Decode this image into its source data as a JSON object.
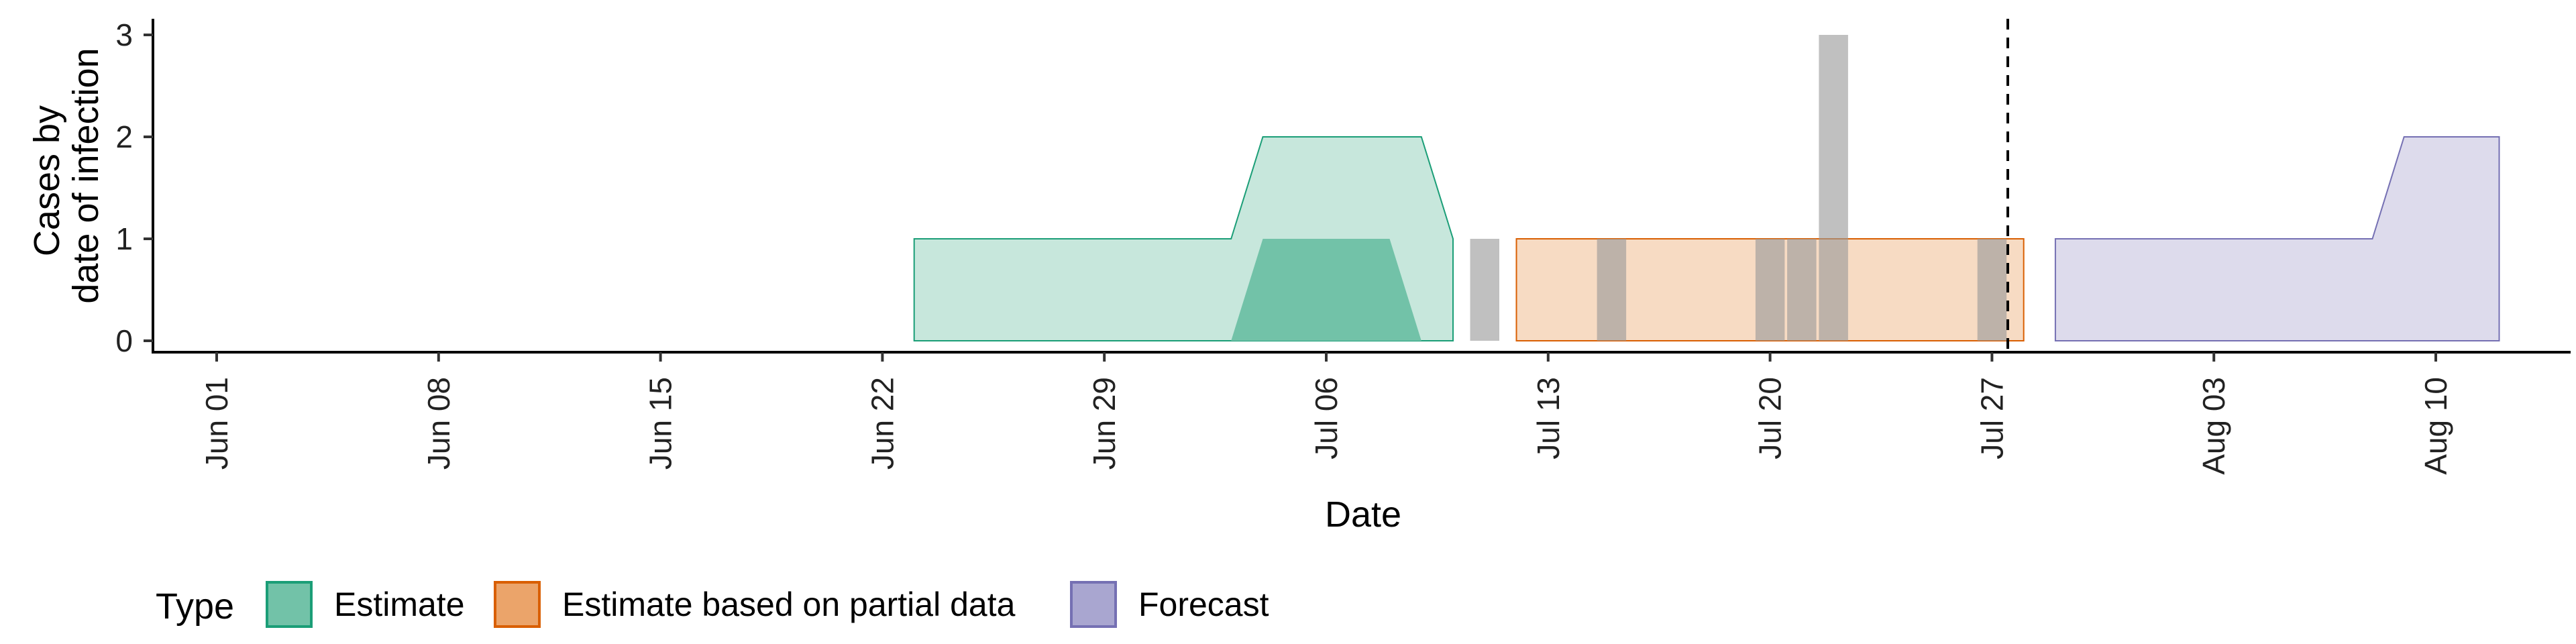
{
  "chart_data": {
    "type": "area",
    "ylabel": [
      "Cases by",
      "date of infection"
    ],
    "xlabel": "Date",
    "x_ticks": [
      "Jun 01",
      "Jun 08",
      "Jun 15",
      "Jun 22",
      "Jun 29",
      "Jul 06",
      "Jul 13",
      "Jul 20",
      "Jul 27",
      "Aug 03",
      "Aug 10"
    ],
    "y_ticks": [
      0,
      1,
      2,
      3
    ],
    "ylim": [
      0,
      3
    ],
    "x_range": [
      "2020-06-01",
      "2020-08-10"
    ],
    "forecast_start": "2020-07-28",
    "grid": false,
    "legend": {
      "title": "Type",
      "position": "bottom-left",
      "entries": [
        {
          "label": "Estimate",
          "fill": "#72c2a8",
          "stroke": "#1b9e77"
        },
        {
          "label": "Estimate based on partial data",
          "fill": "#eba46a",
          "stroke": "#d95f02"
        },
        {
          "label": "Forecast",
          "fill": "#a9a6d0",
          "stroke": "#7570b3"
        }
      ]
    },
    "reported_cases": [
      {
        "date": "2020-07-11",
        "value": 1
      },
      {
        "date": "2020-07-15",
        "value": 1
      },
      {
        "date": "2020-07-20",
        "value": 1
      },
      {
        "date": "2020-07-21",
        "value": 1
      },
      {
        "date": "2020-07-22",
        "value": 3
      },
      {
        "date": "2020-07-27",
        "value": 1
      }
    ],
    "series": [
      {
        "type": "Estimate",
        "dates": [
          "2020-06-23",
          "2020-07-03",
          "2020-07-04",
          "2020-07-08",
          "2020-07-09",
          "2020-07-10"
        ],
        "lower_outer": [
          0,
          0,
          0,
          0,
          0,
          0
        ],
        "upper_outer": [
          1,
          1,
          2,
          2,
          2,
          1
        ],
        "lower_inner": [
          0,
          0,
          0,
          0,
          0,
          0
        ],
        "upper_inner": [
          0,
          0,
          1,
          1,
          0,
          0
        ]
      },
      {
        "type": "Estimate based on partial data",
        "dates": [
          "2020-07-12",
          "2020-07-28"
        ],
        "lower_outer": [
          0,
          0
        ],
        "upper_outer": [
          1,
          1
        ]
      },
      {
        "type": "Forecast",
        "dates": [
          "2020-07-29",
          "2020-08-08",
          "2020-08-09",
          "2020-08-12"
        ],
        "lower_outer": [
          0,
          0,
          0,
          0
        ],
        "upper_outer": [
          1,
          1,
          2,
          2
        ]
      }
    ]
  }
}
